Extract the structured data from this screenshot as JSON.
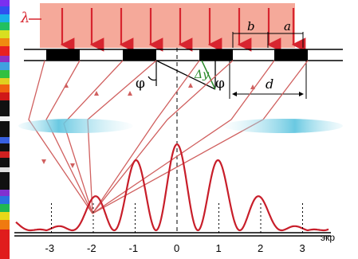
{
  "diagram": {
    "labels": {
      "wavelength": "λ",
      "slit_width": "b",
      "opaque_width": "a",
      "period": "d",
      "angle_left": "φ",
      "angle_right": "φ",
      "path_difference": "Δy",
      "axis_unit": "экр"
    },
    "orders": [
      "-3",
      "-2",
      "-1",
      "0",
      "1",
      "2",
      "3"
    ],
    "colors": {
      "beam": "#f5a99a",
      "arrows": "#d7252f",
      "rays": "#d0605f",
      "pattern": "#c81e2a",
      "lens": "#7fd2e6",
      "grating": "#000000",
      "path_difference": "#2a8a2a"
    }
  }
}
